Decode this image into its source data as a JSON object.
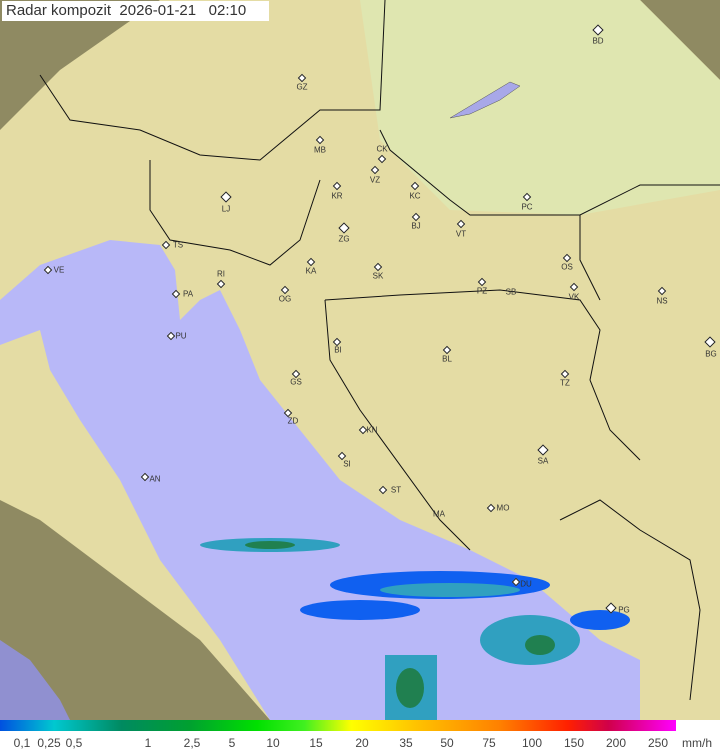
{
  "header": {
    "title": "Radar kompozit",
    "date": "2026-01-21",
    "time": "02:10"
  },
  "colors": {
    "sea": "#b8b8f8",
    "land": "#e8dca0",
    "outside": "#8a8a60",
    "radar_low": "#1060f0",
    "radar_mid": "#30a0c0",
    "radar_high": "#208050"
  },
  "cities": [
    "GZ",
    "BD",
    "MB",
    "CK",
    "VZ",
    "KR",
    "KC",
    "PC",
    "LJ",
    "BJ",
    "VT",
    "ZG",
    "TS",
    "VE",
    "RI",
    "KA",
    "SK",
    "OS",
    "PZ",
    "SB",
    "VK",
    "NS",
    "PA",
    "OG",
    "PU",
    "BG",
    "BI",
    "BL",
    "GS",
    "TZ",
    "ZD",
    "KN",
    "SA",
    "SI",
    "AN",
    "ST",
    "MO",
    "MA",
    "DU",
    "PG"
  ],
  "legend": {
    "ticks": [
      "0,1",
      "0,25",
      "0,5",
      "1",
      "2,5",
      "5",
      "10",
      "15",
      "20",
      "35",
      "50",
      "75",
      "100",
      "150",
      "200",
      "250"
    ],
    "unit": "mm/h"
  }
}
